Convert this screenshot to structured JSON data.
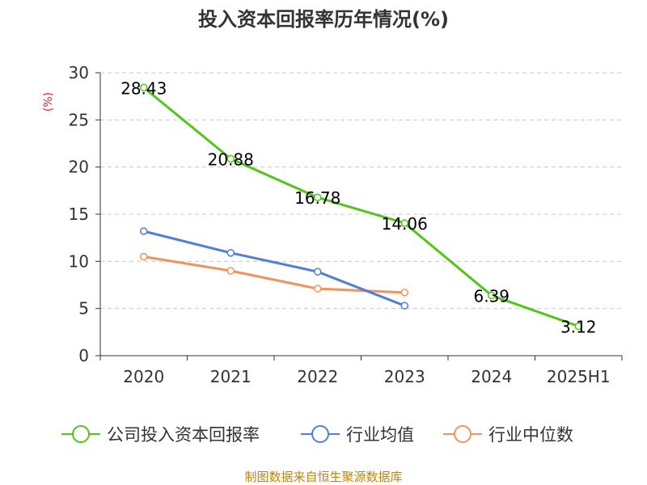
{
  "chart_data": {
    "type": "line",
    "title": "投入资本回报率历年情况(%)",
    "ylabel": "(%)",
    "xlabel": "",
    "categories": [
      "2020",
      "2021",
      "2022",
      "2023",
      "2024",
      "2025H1"
    ],
    "ylim": [
      0,
      30
    ],
    "yticks": [
      0,
      5,
      10,
      15,
      20,
      25,
      30
    ],
    "grid": true,
    "legend_position": "bottom",
    "series": [
      {
        "name": "公司投入资本回报率",
        "color": "#52c41a",
        "values": [
          28.43,
          20.88,
          16.78,
          14.06,
          6.39,
          3.12
        ],
        "labels": [
          "28.43",
          "20.88",
          "16.78",
          "14.06",
          "6.39",
          "3.12"
        ]
      },
      {
        "name": "行业均值",
        "color": "#4f7fd9",
        "values": [
          13.2,
          10.9,
          8.9,
          5.3,
          null,
          null
        ]
      },
      {
        "name": "行业中位数",
        "color": "#f5915c",
        "values": [
          10.5,
          9.0,
          7.1,
          6.7,
          null,
          null
        ]
      }
    ]
  },
  "source": "制图数据来自恒生聚源数据库"
}
